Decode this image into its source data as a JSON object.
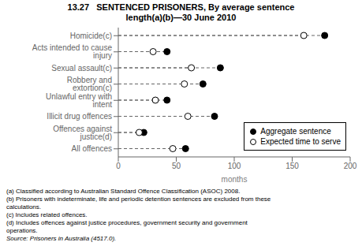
{
  "chart_data": {
    "type": "dot",
    "title": "13.27   SENTENCED PRISONERS, By average sentence",
    "subtitle": "length(a)(b)—30 June 2010",
    "categories": [
      "All offences",
      "Offences against justice(d)",
      "Illicit drug offences",
      "Unlawful entry with intent",
      "Robbery and extortion(c)",
      "Sexual assault(c)",
      "Acts intended to cause injury",
      "Homicide(c)"
    ],
    "series": [
      {
        "name": "Aggregate sentence",
        "color": "#000000",
        "marker": "circle",
        "line_style": "dashed",
        "values": [
          58,
          22,
          83,
          42,
          73,
          88,
          42,
          178
        ]
      },
      {
        "name": "Expected time to serve",
        "color": "#ffffff",
        "marker": "circle",
        "line_style": "dashed",
        "values": [
          47,
          18,
          60,
          32,
          57,
          63,
          30,
          160
        ]
      }
    ],
    "xlim": [
      0,
      200
    ],
    "xticks": [
      0,
      50,
      100,
      150,
      200
    ],
    "xlabel": "months",
    "legend": "lower right",
    "grid": false,
    "notes": [
      "(a) Classified according to Australian Standard Offence Classification (ASOC) 2008.",
      "(b) Prisoners with indeterminate, life and periodic detention sentences are excluded from these",
      "calculations.",
      "(c) Includes related offences.",
      "(d) Includes offences against justice procedures, government security and government",
      "operations."
    ],
    "source": "Source: Prisoners in Australia (4517.0)."
  }
}
